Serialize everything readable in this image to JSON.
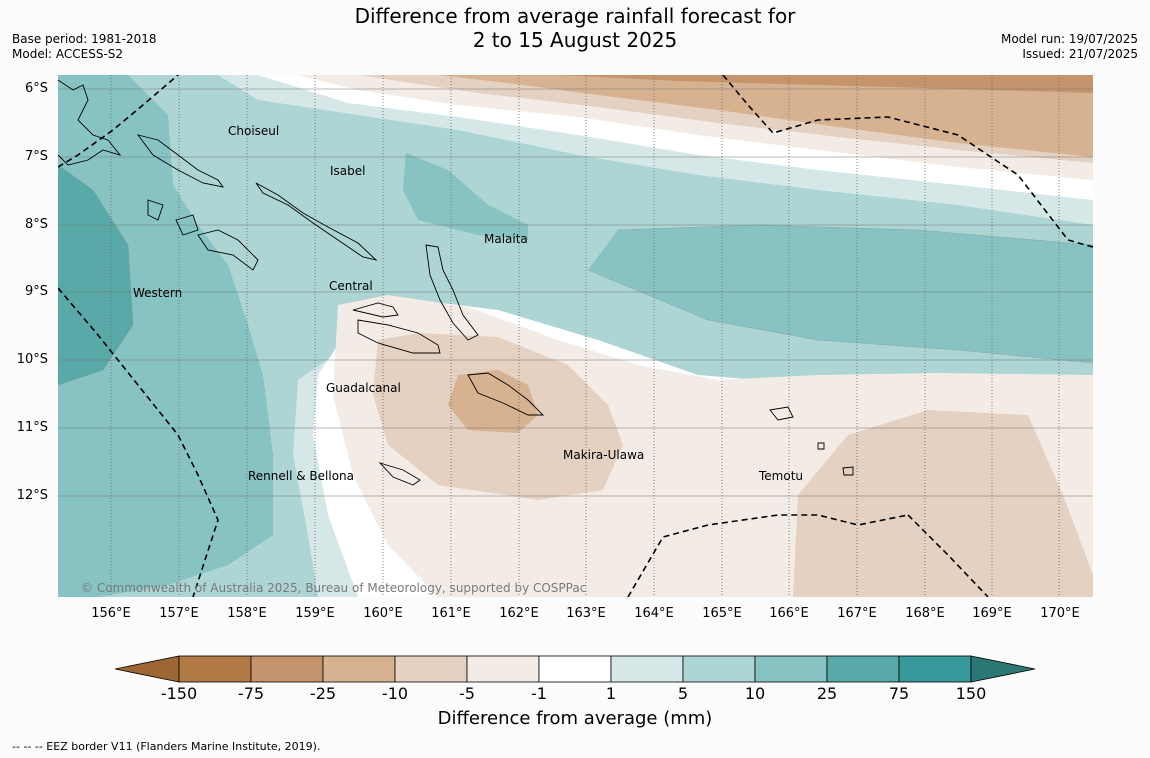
{
  "header": {
    "title_line1": "Difference from average rainfall forecast for",
    "title_line2": "2 to 15 August 2025",
    "base_period": "Base period: 1981-2018",
    "model": "Model: ACCESS-S2",
    "model_run": "Model run: 19/07/2025",
    "issued": "Issued: 21/07/2025"
  },
  "map": {
    "latitude_labels": [
      "6°S",
      "7°S",
      "8°S",
      "9°S",
      "10°S",
      "11°S",
      "12°S"
    ],
    "longitude_labels": [
      "156°E",
      "157°E",
      "158°E",
      "159°E",
      "160°E",
      "161°E",
      "162°E",
      "163°E",
      "164°E",
      "165°E",
      "166°E",
      "167°E",
      "168°E",
      "169°E",
      "170°E"
    ],
    "regions": [
      "Choiseul",
      "Isabel",
      "Malaita",
      "Western",
      "Central",
      "Guadalcanal",
      "Makira-Ulawa",
      "Rennell & Bellona",
      "Temotu"
    ],
    "copyright": "© Commonwealth of Australia 2025, Bureau of Meteorology, supported by COSPPac"
  },
  "colorbar": {
    "ticks": [
      "-150",
      "-75",
      "-25",
      "-10",
      "-5",
      "-1",
      "1",
      "5",
      "10",
      "25",
      "75",
      "150"
    ],
    "label": "Difference from average (mm)",
    "colors": [
      "#9c6734",
      "#b17a44",
      "#c5946c",
      "#d6b291",
      "#e4d1c1",
      "#f3ece6",
      "#ffffff",
      "#d5e8e7",
      "#acd5d4",
      "#86c3c2",
      "#5aa9a9",
      "#38999a",
      "#2a7776"
    ]
  },
  "footnote": "--  --  -- EEZ border V11 (Flanders Marine Institute, 2019)."
}
